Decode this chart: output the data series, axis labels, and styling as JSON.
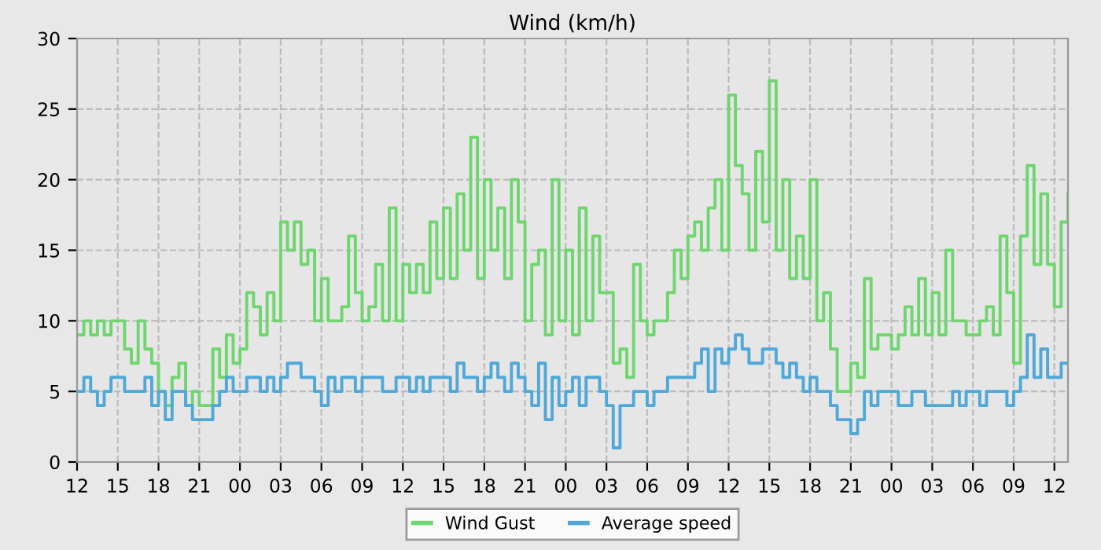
{
  "chart_data": {
    "type": "step",
    "title": "Wind (km/h)",
    "categories": [
      "12",
      null,
      null,
      null,
      null,
      null,
      "15",
      null,
      null,
      null,
      null,
      null,
      "18",
      null,
      null,
      null,
      null,
      null,
      "21",
      null,
      null,
      null,
      null,
      null,
      "00",
      null,
      null,
      null,
      null,
      null,
      "03",
      null,
      null,
      null,
      null,
      null,
      "06",
      null,
      null,
      null,
      null,
      null,
      "09",
      null,
      null,
      null,
      null,
      null,
      "12",
      null,
      null,
      null,
      null,
      null,
      "15",
      null,
      null,
      null,
      null,
      null,
      "18",
      null,
      null,
      null,
      null,
      null,
      "21",
      null,
      null,
      null,
      null,
      null,
      "00",
      null,
      null,
      null,
      null,
      null,
      "03",
      null,
      null,
      null,
      null,
      null,
      "06",
      null,
      null,
      null,
      null,
      null,
      "09",
      null,
      null,
      null,
      null,
      null,
      "12",
      null,
      null,
      null,
      null,
      null,
      "15",
      null,
      null,
      null,
      null,
      null,
      "18",
      null,
      null,
      null,
      null,
      null,
      "21",
      null,
      null,
      null,
      null,
      null,
      "00",
      null,
      null,
      null,
      null,
      null,
      "03",
      null,
      null,
      null,
      null,
      null,
      "06",
      null,
      null,
      null,
      null,
      null,
      "09",
      null,
      null,
      null,
      null,
      null,
      "12",
      null,
      null
    ],
    "series": [
      {
        "name": "Wind Gust",
        "color": "#6fd66f",
        "values": [
          9,
          10,
          9,
          10,
          9,
          10,
          10,
          8,
          7,
          10,
          8,
          7,
          5,
          4,
          6,
          7,
          4,
          5,
          4,
          4,
          8,
          6,
          9,
          7,
          8,
          12,
          11,
          9,
          12,
          10,
          17,
          15,
          17,
          14,
          15,
          10,
          13,
          10,
          10,
          11,
          16,
          12,
          10,
          11,
          14,
          10,
          18,
          10,
          14,
          12,
          14,
          12,
          17,
          13,
          18,
          13,
          19,
          15,
          23,
          13,
          20,
          15,
          18,
          13,
          20,
          17,
          10,
          14,
          15,
          9,
          20,
          10,
          15,
          9,
          18,
          10,
          16,
          12,
          12,
          7,
          8,
          6,
          14,
          10,
          9,
          10,
          10,
          12,
          15,
          13,
          16,
          17,
          15,
          18,
          20,
          15,
          26,
          21,
          19,
          15,
          22,
          17,
          27,
          15,
          20,
          13,
          16,
          13,
          20,
          10,
          12,
          8,
          5,
          5,
          7,
          6,
          13,
          8,
          9,
          9,
          8,
          9,
          11,
          9,
          13,
          9,
          12,
          9,
          15,
          10,
          10,
          9,
          9,
          10,
          11,
          9,
          16,
          12,
          7,
          16,
          21,
          14,
          19,
          14,
          11,
          17,
          19
        ]
      },
      {
        "name": "Average speed",
        "color": "#4fa8d8",
        "values": [
          5,
          6,
          5,
          4,
          5,
          6,
          6,
          5,
          5,
          5,
          6,
          4,
          5,
          3,
          5,
          5,
          4,
          3,
          3,
          3,
          4,
          5,
          6,
          5,
          5,
          6,
          6,
          5,
          6,
          5,
          6,
          7,
          7,
          6,
          6,
          5,
          4,
          6,
          5,
          6,
          6,
          5,
          6,
          6,
          6,
          5,
          5,
          6,
          6,
          5,
          6,
          5,
          6,
          6,
          6,
          5,
          7,
          6,
          6,
          5,
          6,
          7,
          6,
          5,
          7,
          6,
          5,
          4,
          7,
          3,
          6,
          4,
          5,
          6,
          4,
          6,
          6,
          5,
          4,
          1,
          4,
          4,
          5,
          5,
          4,
          5,
          5,
          6,
          6,
          6,
          6,
          7,
          8,
          5,
          8,
          7,
          8,
          9,
          8,
          7,
          7,
          8,
          8,
          7,
          6,
          7,
          6,
          5,
          6,
          5,
          5,
          4,
          3,
          3,
          2,
          3,
          5,
          4,
          5,
          5,
          5,
          4,
          4,
          5,
          5,
          4,
          4,
          4,
          4,
          5,
          4,
          5,
          5,
          4,
          5,
          5,
          5,
          4,
          5,
          6,
          9,
          6,
          8,
          6,
          6,
          7,
          7
        ]
      }
    ],
    "ylim": [
      0,
      30
    ],
    "yticks": [
      0,
      5,
      10,
      15,
      20,
      25,
      30
    ],
    "grid": true,
    "legend": "bottom",
    "line_style": "solid",
    "marker": "none"
  }
}
